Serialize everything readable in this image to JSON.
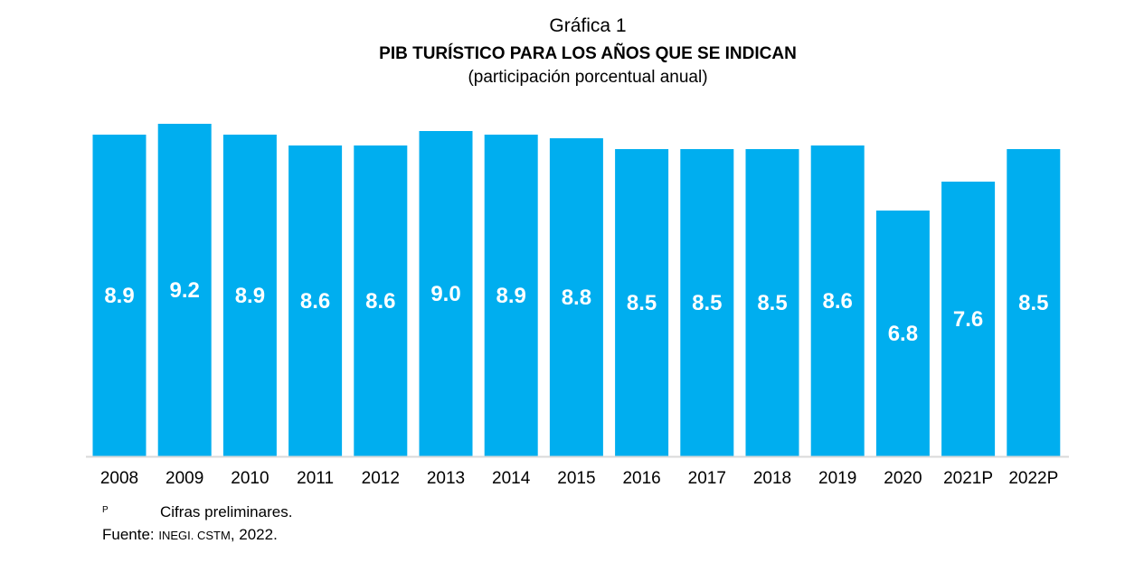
{
  "header": {
    "label": "Gráfica 1",
    "title": "PIB TURÍSTICO PARA LOS AÑOS QUE SE INDICAN",
    "subtitle": "(participación porcentual anual)"
  },
  "chart_data": {
    "type": "bar",
    "title": "PIB TURÍSTICO PARA LOS AÑOS QUE SE INDICAN",
    "subtitle": "(participación porcentual anual)",
    "xlabel": "",
    "ylabel": "",
    "categories": [
      "2008",
      "2009",
      "2010",
      "2011",
      "2012",
      "2013",
      "2014",
      "2015",
      "2016",
      "2017",
      "2018",
      "2019",
      "2020",
      "2021P",
      "2022P"
    ],
    "values": [
      8.9,
      9.2,
      8.9,
      8.6,
      8.6,
      9.0,
      8.9,
      8.8,
      8.5,
      8.5,
      8.5,
      8.6,
      6.8,
      7.6,
      8.5
    ],
    "value_labels": [
      "8.9",
      "9.2",
      "8.9",
      "8.6",
      "8.6",
      "9.0",
      "8.9",
      "8.8",
      "8.5",
      "8.5",
      "8.5",
      "8.6",
      "6.8",
      "7.6",
      "8.5"
    ],
    "ylim": [
      0,
      9.5
    ],
    "grid": false,
    "legend": "none",
    "bar_color": "#00aeef",
    "label_color": "#ffffff",
    "axis_color": "#d9d9d9"
  },
  "footnotes": {
    "note_marker": "P",
    "note_text": "Cifras preliminares.",
    "source_prefix": "Fuente: ",
    "source_org": "INEGI. CSTM",
    "source_suffix": ", 2022."
  }
}
